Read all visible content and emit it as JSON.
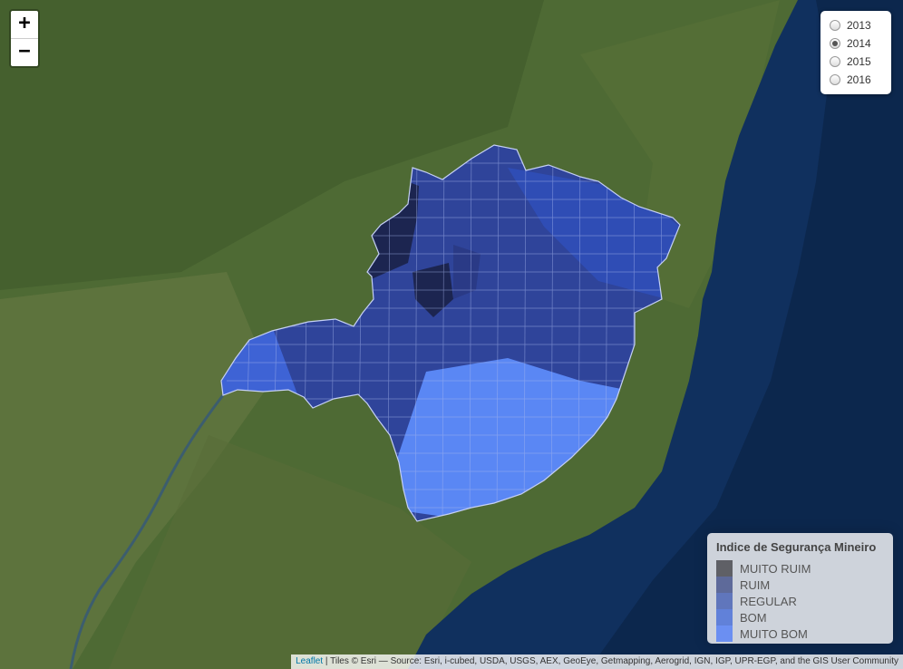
{
  "map": {
    "colors": {
      "ocean": "#10305e",
      "land": "#4e6a34",
      "state_fill_dark": "#2f449a",
      "state_border": "#a9b8ee"
    },
    "state_regions": [
      {
        "category": "MUITO RUIM",
        "color": "#1c2550"
      },
      {
        "category": "RUIM",
        "color": "#2a3a86"
      },
      {
        "category": "REGULAR",
        "color": "#2f4db5"
      },
      {
        "category": "BOM",
        "color": "#3e63d5"
      },
      {
        "category": "MUITO BOM",
        "color": "#5a87f4"
      }
    ]
  },
  "zoom": {
    "in_label": "+",
    "out_label": "−"
  },
  "layers": {
    "options": [
      {
        "label": "2013",
        "checked": false
      },
      {
        "label": "2014",
        "checked": true
      },
      {
        "label": "2015",
        "checked": false
      },
      {
        "label": "2016",
        "checked": false
      }
    ]
  },
  "legend": {
    "title": "Indice de Segurança Mineiro",
    "items": [
      {
        "label": "MUITO RUIM",
        "color": "#5f6066"
      },
      {
        "label": "RUIM",
        "color": "#5e6a9a"
      },
      {
        "label": "REGULAR",
        "color": "#6076bc"
      },
      {
        "label": "BOM",
        "color": "#6181d9"
      },
      {
        "label": "MUITO BOM",
        "color": "#6b8ff2"
      }
    ]
  },
  "attribution": {
    "brand": "Leaflet",
    "text": " | Tiles © Esri — Source: Esri, i-cubed, USDA, USGS, AEX, GeoEye, Getmapping, Aerogrid, IGN, IGP, UPR-EGP, and the GIS User Community"
  }
}
